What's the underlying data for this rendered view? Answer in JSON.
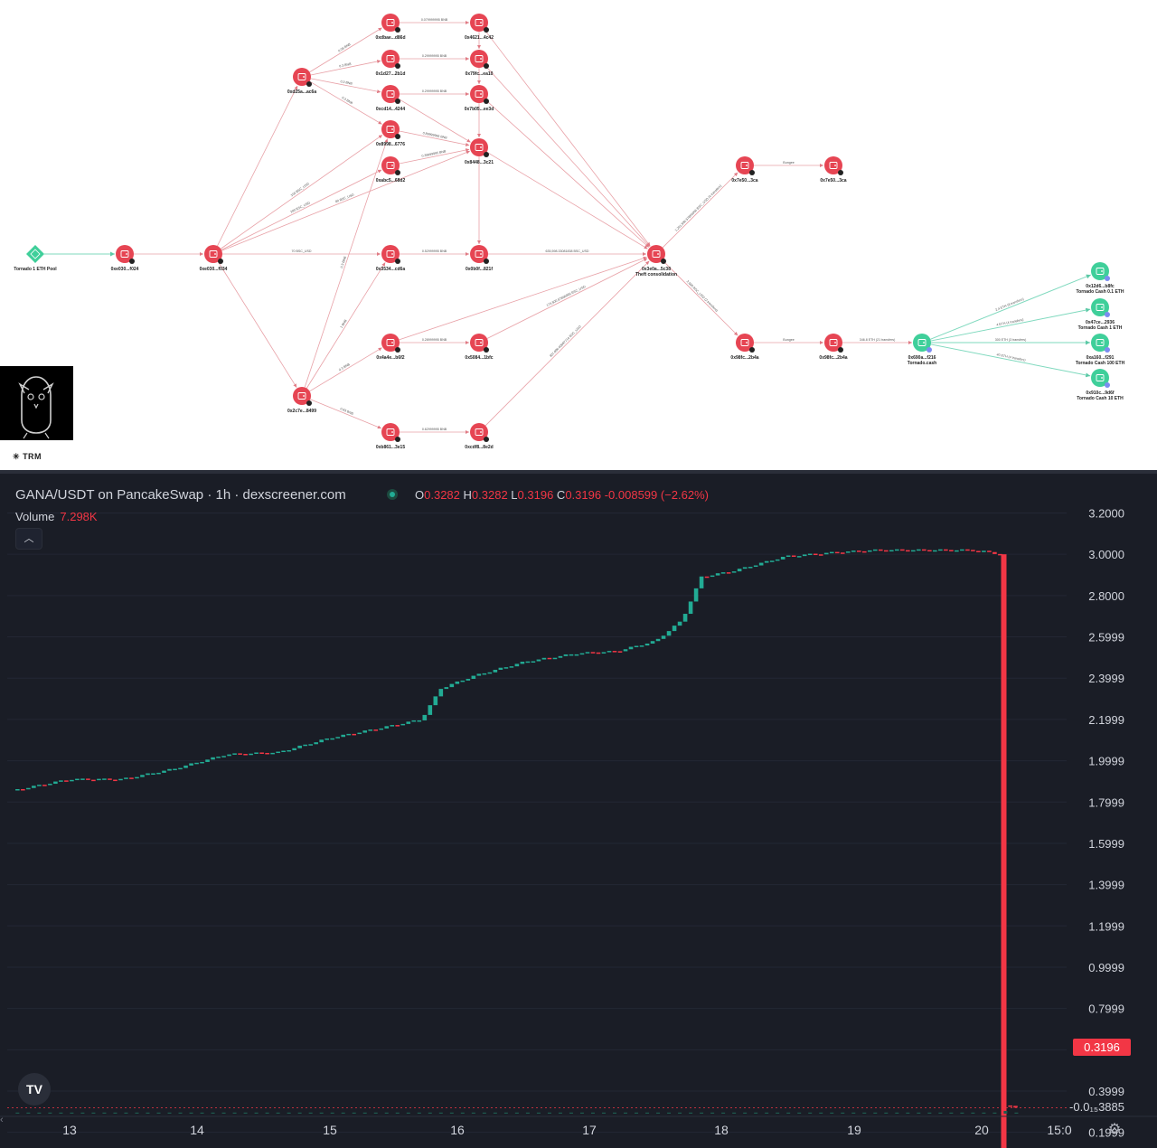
{
  "graph": {
    "watermark": "TRM",
    "logo_icon": "owl-avatar-icon",
    "colors": {
      "wallet": "#e64553",
      "pool": "#3fcf9a",
      "edge_red": "#e8a0a6",
      "edge_green": "#7fd9be"
    },
    "nodes": [
      {
        "id": "pool",
        "label": "Tornado 1 ETH Pool",
        "kind": "pool"
      },
      {
        "id": "n1",
        "label": "0xe030...f024",
        "kind": "wallet"
      },
      {
        "id": "n2",
        "label": "0xe030...f034",
        "kind": "wallet"
      },
      {
        "id": "n3",
        "label": "0xd25a...ac6a",
        "kind": "wallet"
      },
      {
        "id": "n4",
        "label": "0x2c7e...8499",
        "kind": "wallet"
      },
      {
        "id": "n5",
        "label": "0xdbae...d86d",
        "kind": "wallet"
      },
      {
        "id": "n6",
        "label": "0x1d27...2b1d",
        "kind": "wallet"
      },
      {
        "id": "n7",
        "label": "0xcd14...4244",
        "kind": "wallet"
      },
      {
        "id": "n8",
        "label": "0x8998...6776",
        "kind": "wallet"
      },
      {
        "id": "n9",
        "label": "0xabc5...68d2",
        "kind": "wallet"
      },
      {
        "id": "n10",
        "label": "0x3534...cd6a",
        "kind": "wallet"
      },
      {
        "id": "n11",
        "label": "0x4a4e...b6f2",
        "kind": "wallet"
      },
      {
        "id": "n12",
        "label": "0xb861...3e15",
        "kind": "wallet"
      },
      {
        "id": "n13",
        "label": "0x4621...4c42",
        "kind": "wallet"
      },
      {
        "id": "n14",
        "label": "0x79fc...ea10",
        "kind": "wallet"
      },
      {
        "id": "n15",
        "label": "0x7b05...ee3d",
        "kind": "wallet"
      },
      {
        "id": "n16",
        "label": "0x8448...3c21",
        "kind": "wallet"
      },
      {
        "id": "n17",
        "label": "0x0b0f...821f",
        "kind": "wallet"
      },
      {
        "id": "n18",
        "label": "0x5084...1bfc",
        "kind": "wallet"
      },
      {
        "id": "n19",
        "label": "0xcdf8...8e2d",
        "kind": "wallet"
      },
      {
        "id": "n20",
        "label": "0x3e0a...5c38",
        "sublabel": "Theft consolidation",
        "kind": "wallet"
      },
      {
        "id": "n21",
        "label": "0x7e50...3ca",
        "kind": "wallet"
      },
      {
        "id": "n22",
        "label": "0x7e50...3ca",
        "kind": "wallet"
      },
      {
        "id": "n23",
        "label": "0x98fc...2b4a",
        "kind": "wallet"
      },
      {
        "id": "n24",
        "label": "0x98fc...2b4a",
        "kind": "wallet"
      },
      {
        "id": "n25",
        "label": "0x690a...f216",
        "sublabel": "Tornado.cash",
        "kind": "pool"
      },
      {
        "id": "n26",
        "label": "0x12d6...b8fc",
        "sublabel": "Tornado Cash 0.1 ETH",
        "kind": "pool"
      },
      {
        "id": "n27",
        "label": "0x47ce...2936",
        "sublabel": "Tornado Cash 1 ETH",
        "kind": "pool"
      },
      {
        "id": "n28",
        "label": "0xa160...f291",
        "sublabel": "Tornado Cash 100 ETH",
        "kind": "pool"
      },
      {
        "id": "n29",
        "label": "0x910c...9d6f",
        "sublabel": "Tornado Cash 10 ETH",
        "kind": "pool"
      }
    ],
    "edges": [
      {
        "from": "pool",
        "to": "n1",
        "color": "green"
      },
      {
        "from": "n1",
        "to": "n2",
        "color": "red"
      },
      {
        "from": "n2",
        "to": "n3",
        "color": "red"
      },
      {
        "from": "n2",
        "to": "n4",
        "color": "red"
      },
      {
        "from": "n2",
        "to": "n8",
        "color": "red",
        "label": "100 BSC_USD"
      },
      {
        "from": "n2",
        "to": "n9",
        "color": "red",
        "label": "200 BSC_USD"
      },
      {
        "from": "n2",
        "to": "n10",
        "color": "red",
        "label": "70 BSC_USD"
      },
      {
        "from": "n2",
        "to": "n16",
        "color": "red",
        "label": "80 BSC_USD"
      },
      {
        "from": "n3",
        "to": "n5",
        "color": "red",
        "label": "0.08 BNB"
      },
      {
        "from": "n3",
        "to": "n6",
        "color": "red",
        "label": "0.3 BNB"
      },
      {
        "from": "n3",
        "to": "n7",
        "color": "red",
        "label": "0.3 BNB"
      },
      {
        "from": "n3",
        "to": "n8",
        "color": "red",
        "label": "0.3 BNB"
      },
      {
        "from": "n4",
        "to": "n10",
        "color": "red",
        "label": "1 BNB"
      },
      {
        "from": "n4",
        "to": "n8",
        "color": "red",
        "label": "0.3 BNB"
      },
      {
        "from": "n4",
        "to": "n11",
        "color": "red",
        "label": "0.3 BNB"
      },
      {
        "from": "n4",
        "to": "n12",
        "color": "red",
        "label": "0.83 BNB"
      },
      {
        "from": "n5",
        "to": "n13",
        "color": "red",
        "label": "0.079999995 BNB"
      },
      {
        "from": "n6",
        "to": "n14",
        "color": "red",
        "label": "0.29999995 BNB"
      },
      {
        "from": "n7",
        "to": "n15",
        "color": "red",
        "label": "0.29999995 BNB"
      },
      {
        "from": "n8",
        "to": "n16",
        "color": "red",
        "label": "0.89999995 BNB"
      },
      {
        "from": "n9",
        "to": "n16",
        "color": "red",
        "label": "0.39999995 BNB"
      },
      {
        "from": "n10",
        "to": "n17",
        "color": "red",
        "label": "0.52999995 BNB"
      },
      {
        "from": "n11",
        "to": "n18",
        "color": "red",
        "label": "0.28999995 BNB"
      },
      {
        "from": "n12",
        "to": "n19",
        "color": "red",
        "label": "0.62999995 BNB"
      },
      {
        "from": "n7",
        "to": "n16",
        "color": "red"
      },
      {
        "from": "n13",
        "to": "n20",
        "color": "red"
      },
      {
        "from": "n14",
        "to": "n20",
        "color": "red"
      },
      {
        "from": "n15",
        "to": "n20",
        "color": "red"
      },
      {
        "from": "n16",
        "to": "n20",
        "color": "red"
      },
      {
        "from": "n17",
        "to": "n20",
        "color": "red",
        "label": "635,598.33081838 BSC_USD"
      },
      {
        "from": "n11",
        "to": "n20",
        "color": "red"
      },
      {
        "from": "n18",
        "to": "n20",
        "color": "red",
        "label": "173,500.57866066 BSC_USD"
      },
      {
        "from": "n19",
        "to": "n20",
        "color": "red",
        "label": "307,896.60097714 BSC_USD"
      },
      {
        "from": "n13",
        "to": "n14",
        "color": "red"
      },
      {
        "from": "n14",
        "to": "n15",
        "color": "red"
      },
      {
        "from": "n15",
        "to": "n16",
        "color": "red"
      },
      {
        "from": "n16",
        "to": "n17",
        "color": "red"
      },
      {
        "from": "n20",
        "to": "n21",
        "color": "red",
        "label": "1,261,596.57866066 BSC_USD (6 transfers)"
      },
      {
        "from": "n21",
        "to": "n22",
        "color": "red",
        "label": "Bungee"
      },
      {
        "from": "n20",
        "to": "n23",
        "color": "red",
        "label": "2,000 BSC_USD (2 transfers)"
      },
      {
        "from": "n23",
        "to": "n24",
        "color": "red",
        "label": "Bungee"
      },
      {
        "from": "n24",
        "to": "n25",
        "color": "red",
        "label": "346.8 ETH (21 transfers)"
      },
      {
        "from": "n25",
        "to": "n26",
        "color": "green",
        "label": "2.4 ETH (8 transfers)"
      },
      {
        "from": "n25",
        "to": "n27",
        "color": "green",
        "label": "4 ETH (4 transfers)"
      },
      {
        "from": "n25",
        "to": "n28",
        "color": "green",
        "label": "300 ETH (3 transfers)"
      },
      {
        "from": "n25",
        "to": "n29",
        "color": "green",
        "label": "40 ETH (4 transfers)"
      }
    ]
  },
  "chart": {
    "title": "GANA/USDT on PancakeSwap · 1h · dexscreener.com",
    "ohlc": {
      "o_label": "O",
      "o": "0.3282",
      "h_label": "H",
      "h": "0.3282",
      "l_label": "L",
      "l": "0.3196",
      "c_label": "C",
      "c": "0.3196",
      "change": "-0.008599 (−2.62%)"
    },
    "volume_label": "Volume",
    "volume_value": "7.298K",
    "collapse_icon": "chevron-up-icon",
    "logo_text": "TV",
    "last_price": "0.3196",
    "y_ticks": [
      "3.2000",
      "3.0000",
      "2.8000",
      "2.5999",
      "2.3999",
      "2.1999",
      "1.9999",
      "1.7999",
      "1.5999",
      "1.3999",
      "1.1999",
      "0.9999",
      "0.7999",
      "0.5999",
      "0.3999",
      "0.1999",
      "-0.0₁₅3885"
    ],
    "x_ticks": [
      "13",
      "14",
      "15",
      "16",
      "17",
      "18",
      "19",
      "20",
      "15:0"
    ],
    "colors": {
      "up": "#22ab94",
      "down": "#f23645",
      "bg": "#1a1d26",
      "grid": "#232734",
      "text": "#d1d4dc"
    }
  },
  "chart_data": {
    "type": "line",
    "title": "GANA/USDT on PancakeSwap · 1h · dexscreener.com",
    "xlabel": "",
    "ylabel": "",
    "x": [
      12.6,
      13.0,
      13.4,
      13.8,
      14.2,
      14.6,
      15.0,
      15.4,
      15.7,
      15.85,
      16.1,
      16.5,
      16.9,
      17.2,
      17.5,
      17.7,
      17.85,
      18.1,
      18.5,
      18.9,
      19.2,
      19.6,
      19.95,
      20.15,
      20.18,
      20.25,
      20.3
    ],
    "series": [
      {
        "name": "",
        "values": [
          1.86,
          1.91,
          1.91,
          1.96,
          2.03,
          2.04,
          2.11,
          2.16,
          2.2,
          2.35,
          2.41,
          2.48,
          2.52,
          2.53,
          2.58,
          2.68,
          2.89,
          2.92,
          2.99,
          3.01,
          3.02,
          3.02,
          3.02,
          3.0,
          0.0,
          0.328,
          0.3196
        ]
      }
    ],
    "ylim": [
      -0.1,
      3.3
    ],
    "xlim": [
      12.55,
      21.1
    ],
    "grid": true
  }
}
